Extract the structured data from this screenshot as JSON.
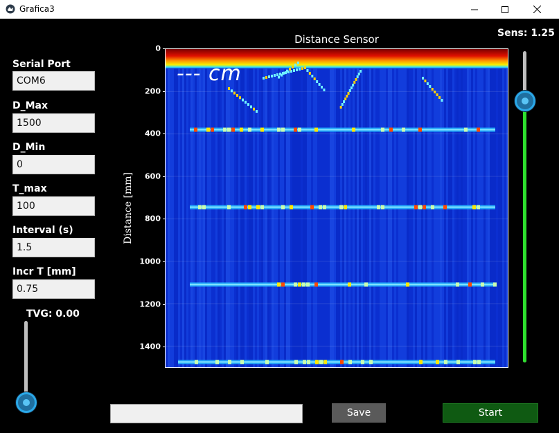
{
  "window": {
    "title": "Grafica3"
  },
  "panel": {
    "fields": [
      {
        "label": "Serial Port",
        "value": "COM6"
      },
      {
        "label": "D_Max",
        "value": "1500"
      },
      {
        "label": "D_Min",
        "value": "0"
      },
      {
        "label": "T_max",
        "value": "100"
      },
      {
        "label": "Interval (s)",
        "value": "1.5"
      },
      {
        "label": "Incr T [mm]",
        "value": "0.75"
      }
    ]
  },
  "tvg": {
    "label": "TVG: 0.00",
    "level": 0.0
  },
  "sens": {
    "label": "Sens: 1.25",
    "level": 0.84
  },
  "plot": {
    "title": "Distance Sensor",
    "ylabel": "Distance [mm]",
    "overlay": "--- cm",
    "yticks": [
      "0",
      "200",
      "400",
      "600",
      "800",
      "1000",
      "1200",
      "1400"
    ]
  },
  "chart_data": {
    "type": "heatmap",
    "title": "Distance Sensor",
    "ylabel": "Distance [mm]",
    "ylim": [
      0,
      1500
    ],
    "yticks": [
      0,
      200,
      400,
      600,
      800,
      1000,
      1200,
      1400
    ],
    "echo_bands_mm": [
      380,
      745,
      1110,
      1475
    ],
    "surface_mm": [
      20,
      60
    ]
  },
  "buttons": {
    "save": "Save",
    "start": "Start"
  },
  "colors": {
    "background": "#000000",
    "heatmap_base": "#0b2fd0",
    "save_button": "#5a5a5a",
    "start_button": "#0f5a12",
    "sens_fill": "#2ee02e",
    "knob": "#2aa8e8"
  },
  "icons": {
    "app": "app-logo-icon",
    "minimize": "minimize-icon",
    "maximize": "maximize-icon",
    "close": "close-icon"
  }
}
